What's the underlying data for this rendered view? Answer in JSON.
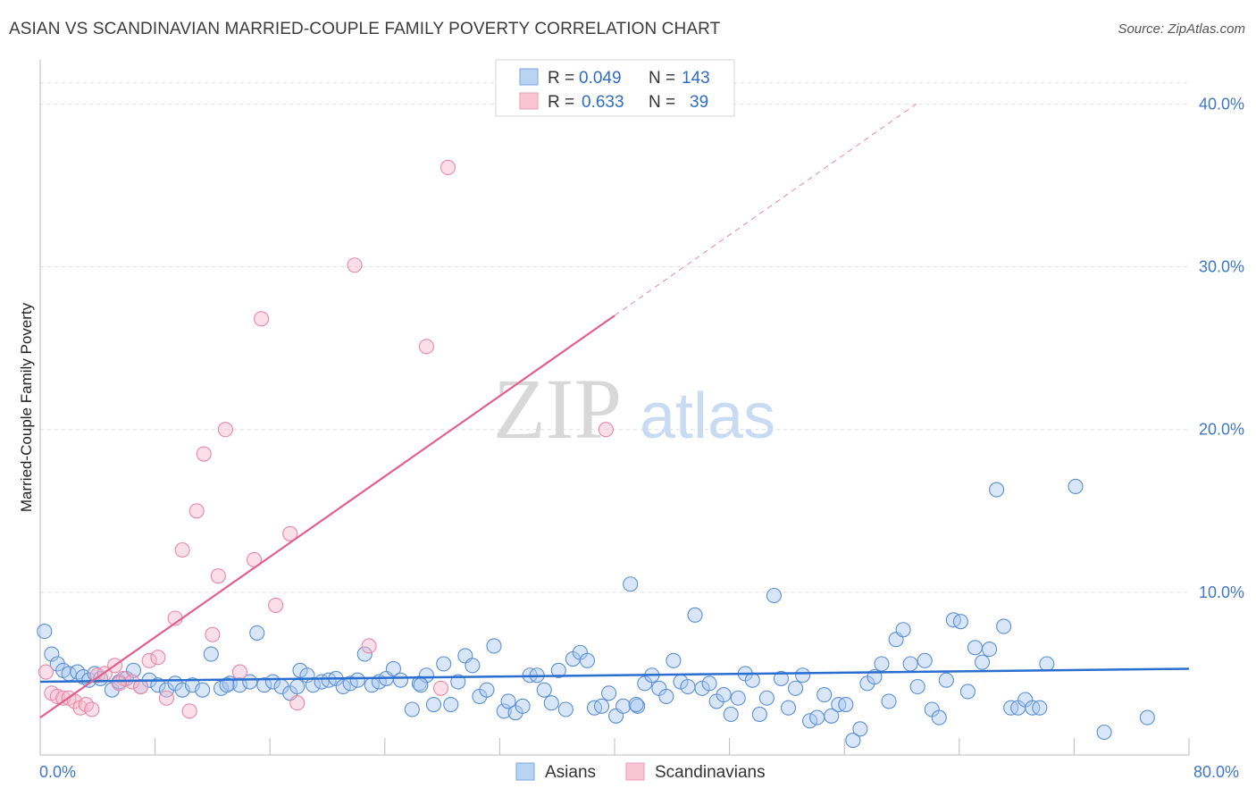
{
  "header": {
    "title": "ASIAN VS SCANDINAVIAN MARRIED-COUPLE FAMILY POVERTY CORRELATION CHART",
    "source": "Source: ZipAtlas.com"
  },
  "watermark": {
    "zip": "ZIP",
    "atlas": "atlas"
  },
  "legend": {
    "rows": [
      {
        "r_label": "R =",
        "r_value": "0.049",
        "n_label": "N =",
        "n_value": "143"
      },
      {
        "r_label": "R =",
        "r_value": "0.633",
        "n_label": "N =",
        "n_value": "39"
      }
    ]
  },
  "bottom_legend": {
    "series_a": "Asians",
    "series_b": "Scandinavians"
  },
  "chart_data": {
    "type": "scatter",
    "title": "ASIAN VS SCANDINAVIAN MARRIED-COUPLE FAMILY POVERTY CORRELATION CHART",
    "xlabel": "",
    "ylabel": "Married-Couple Family Poverty",
    "xlim": [
      0,
      80
    ],
    "ylim": [
      0,
      42
    ],
    "x_tick_labels": [
      "0.0%",
      "80.0%"
    ],
    "y_ticks": [
      10,
      20,
      30,
      40
    ],
    "y_tick_labels": [
      "10.0%",
      "20.0%",
      "30.0%",
      "40.0%"
    ],
    "colors": {
      "asians_fill": "#a8c8f0",
      "asians_stroke": "#5b8fd6",
      "asians_line": "#2a6fd0",
      "scand_fill": "#f6b8cb",
      "scand_stroke": "#e888a6",
      "scand_line": "#e0608a",
      "axis_label": "#3e76c8"
    },
    "series": [
      {
        "name": "Asians",
        "r": 0.049,
        "n": 143,
        "trend": {
          "x": [
            0,
            80
          ],
          "y": [
            4.5,
            5.3
          ]
        },
        "points": [
          [
            0.3,
            7.6
          ],
          [
            0.8,
            6.2
          ],
          [
            1.2,
            5.6
          ],
          [
            1.6,
            5.2
          ],
          [
            2.0,
            5.0
          ],
          [
            2.6,
            5.1
          ],
          [
            3.0,
            4.8
          ],
          [
            3.4,
            4.6
          ],
          [
            3.8,
            5.0
          ],
          [
            4.2,
            4.7
          ],
          [
            5.0,
            4.0
          ],
          [
            5.5,
            4.5
          ],
          [
            6.0,
            4.7
          ],
          [
            6.5,
            5.2
          ],
          [
            7.0,
            4.2
          ],
          [
            7.6,
            4.6
          ],
          [
            8.2,
            4.3
          ],
          [
            8.8,
            4.0
          ],
          [
            9.4,
            4.4
          ],
          [
            9.9,
            4.0
          ],
          [
            10.6,
            4.3
          ],
          [
            11.3,
            4.0
          ],
          [
            11.9,
            6.2
          ],
          [
            12.6,
            4.1
          ],
          [
            13.2,
            4.4
          ],
          [
            13.9,
            4.3
          ],
          [
            14.6,
            4.5
          ],
          [
            15.1,
            7.5
          ],
          [
            15.6,
            4.3
          ],
          [
            16.2,
            4.5
          ],
          [
            16.8,
            4.2
          ],
          [
            17.4,
            3.8
          ],
          [
            17.9,
            4.2
          ],
          [
            18.1,
            5.2
          ],
          [
            18.6,
            4.9
          ],
          [
            19.0,
            4.3
          ],
          [
            19.6,
            4.5
          ],
          [
            20.1,
            4.6
          ],
          [
            20.6,
            4.7
          ],
          [
            21.1,
            4.2
          ],
          [
            21.6,
            4.4
          ],
          [
            22.1,
            4.6
          ],
          [
            22.6,
            6.2
          ],
          [
            23.1,
            4.3
          ],
          [
            23.6,
            4.5
          ],
          [
            24.1,
            4.7
          ],
          [
            24.6,
            5.3
          ],
          [
            25.1,
            4.6
          ],
          [
            25.9,
            2.8
          ],
          [
            26.4,
            4.4
          ],
          [
            26.9,
            4.9
          ],
          [
            27.4,
            3.1
          ],
          [
            28.1,
            5.6
          ],
          [
            28.6,
            3.1
          ],
          [
            29.1,
            4.5
          ],
          [
            29.6,
            6.1
          ],
          [
            30.1,
            5.5
          ],
          [
            30.6,
            3.6
          ],
          [
            31.1,
            4.0
          ],
          [
            31.6,
            6.7
          ],
          [
            32.3,
            2.7
          ],
          [
            32.6,
            3.3
          ],
          [
            33.1,
            2.6
          ],
          [
            33.6,
            3.0
          ],
          [
            34.1,
            4.9
          ],
          [
            34.6,
            4.9
          ],
          [
            35.1,
            4.0
          ],
          [
            35.6,
            3.2
          ],
          [
            36.1,
            5.2
          ],
          [
            36.6,
            2.8
          ],
          [
            37.1,
            5.9
          ],
          [
            37.6,
            6.3
          ],
          [
            38.1,
            5.8
          ],
          [
            38.6,
            2.9
          ],
          [
            39.1,
            3.0
          ],
          [
            39.6,
            3.8
          ],
          [
            40.1,
            2.4
          ],
          [
            40.6,
            3.0
          ],
          [
            41.1,
            10.5
          ],
          [
            41.6,
            3.0
          ],
          [
            42.1,
            4.4
          ],
          [
            42.6,
            4.9
          ],
          [
            43.1,
            4.1
          ],
          [
            43.6,
            3.6
          ],
          [
            44.1,
            5.8
          ],
          [
            44.6,
            4.5
          ],
          [
            45.1,
            4.2
          ],
          [
            45.6,
            8.6
          ],
          [
            46.1,
            4.1
          ],
          [
            46.6,
            4.4
          ],
          [
            47.1,
            3.3
          ],
          [
            47.6,
            3.7
          ],
          [
            48.1,
            2.5
          ],
          [
            48.6,
            3.5
          ],
          [
            49.1,
            5.0
          ],
          [
            49.6,
            4.6
          ],
          [
            50.1,
            2.5
          ],
          [
            50.6,
            3.5
          ],
          [
            51.1,
            9.8
          ],
          [
            51.6,
            4.7
          ],
          [
            52.1,
            2.9
          ],
          [
            52.6,
            4.1
          ],
          [
            53.1,
            4.9
          ],
          [
            53.6,
            2.1
          ],
          [
            54.1,
            2.3
          ],
          [
            54.6,
            3.7
          ],
          [
            55.1,
            2.4
          ],
          [
            55.6,
            3.1
          ],
          [
            56.1,
            3.1
          ],
          [
            56.6,
            0.9
          ],
          [
            57.1,
            1.6
          ],
          [
            57.6,
            4.4
          ],
          [
            58.1,
            4.8
          ],
          [
            58.6,
            5.6
          ],
          [
            59.1,
            3.3
          ],
          [
            59.6,
            7.1
          ],
          [
            60.1,
            7.7
          ],
          [
            60.6,
            5.6
          ],
          [
            61.1,
            4.2
          ],
          [
            61.6,
            5.8
          ],
          [
            62.1,
            2.8
          ],
          [
            62.6,
            2.3
          ],
          [
            63.1,
            4.6
          ],
          [
            63.6,
            8.3
          ],
          [
            64.1,
            8.2
          ],
          [
            64.6,
            3.9
          ],
          [
            65.1,
            6.6
          ],
          [
            65.6,
            5.7
          ],
          [
            66.1,
            6.5
          ],
          [
            66.6,
            16.3
          ],
          [
            67.1,
            7.9
          ],
          [
            67.6,
            2.9
          ],
          [
            68.1,
            2.9
          ],
          [
            68.6,
            3.4
          ],
          [
            69.1,
            2.9
          ],
          [
            69.6,
            2.9
          ],
          [
            70.1,
            5.6
          ],
          [
            72.1,
            16.5
          ],
          [
            74.1,
            1.4
          ],
          [
            77.1,
            2.3
          ],
          [
            41.5,
            3.1
          ],
          [
            26.5,
            4.3
          ],
          [
            13.0,
            4.3
          ]
        ]
      },
      {
        "name": "Scandinavians",
        "r": 0.633,
        "n": 39,
        "trend": {
          "x": [
            0,
            40
          ],
          "y": [
            2.3,
            27.0
          ]
        },
        "trend_extension": {
          "x": [
            40,
            61
          ],
          "y": [
            27.0,
            40.0
          ]
        },
        "points": [
          [
            0.4,
            5.1
          ],
          [
            0.8,
            3.8
          ],
          [
            1.2,
            3.6
          ],
          [
            1.6,
            3.5
          ],
          [
            2.0,
            3.5
          ],
          [
            2.4,
            3.3
          ],
          [
            2.8,
            2.9
          ],
          [
            3.2,
            3.1
          ],
          [
            3.6,
            2.8
          ],
          [
            4.0,
            4.9
          ],
          [
            4.5,
            5.0
          ],
          [
            5.2,
            5.5
          ],
          [
            5.8,
            4.7
          ],
          [
            6.4,
            4.5
          ],
          [
            7.0,
            4.2
          ],
          [
            7.6,
            5.8
          ],
          [
            8.2,
            6.0
          ],
          [
            8.8,
            3.5
          ],
          [
            9.4,
            8.4
          ],
          [
            9.9,
            12.6
          ],
          [
            10.4,
            2.7
          ],
          [
            10.9,
            15.0
          ],
          [
            11.4,
            18.5
          ],
          [
            12.0,
            7.4
          ],
          [
            12.4,
            11.0
          ],
          [
            12.9,
            20.0
          ],
          [
            13.9,
            5.1
          ],
          [
            14.9,
            12.0
          ],
          [
            15.4,
            26.8
          ],
          [
            16.4,
            9.2
          ],
          [
            17.4,
            13.6
          ],
          [
            17.9,
            3.2
          ],
          [
            21.9,
            30.1
          ],
          [
            22.9,
            6.7
          ],
          [
            26.9,
            25.1
          ],
          [
            27.9,
            4.1
          ],
          [
            28.4,
            36.1
          ],
          [
            39.4,
            20.0
          ],
          [
            5.5,
            4.4
          ]
        ]
      }
    ]
  }
}
